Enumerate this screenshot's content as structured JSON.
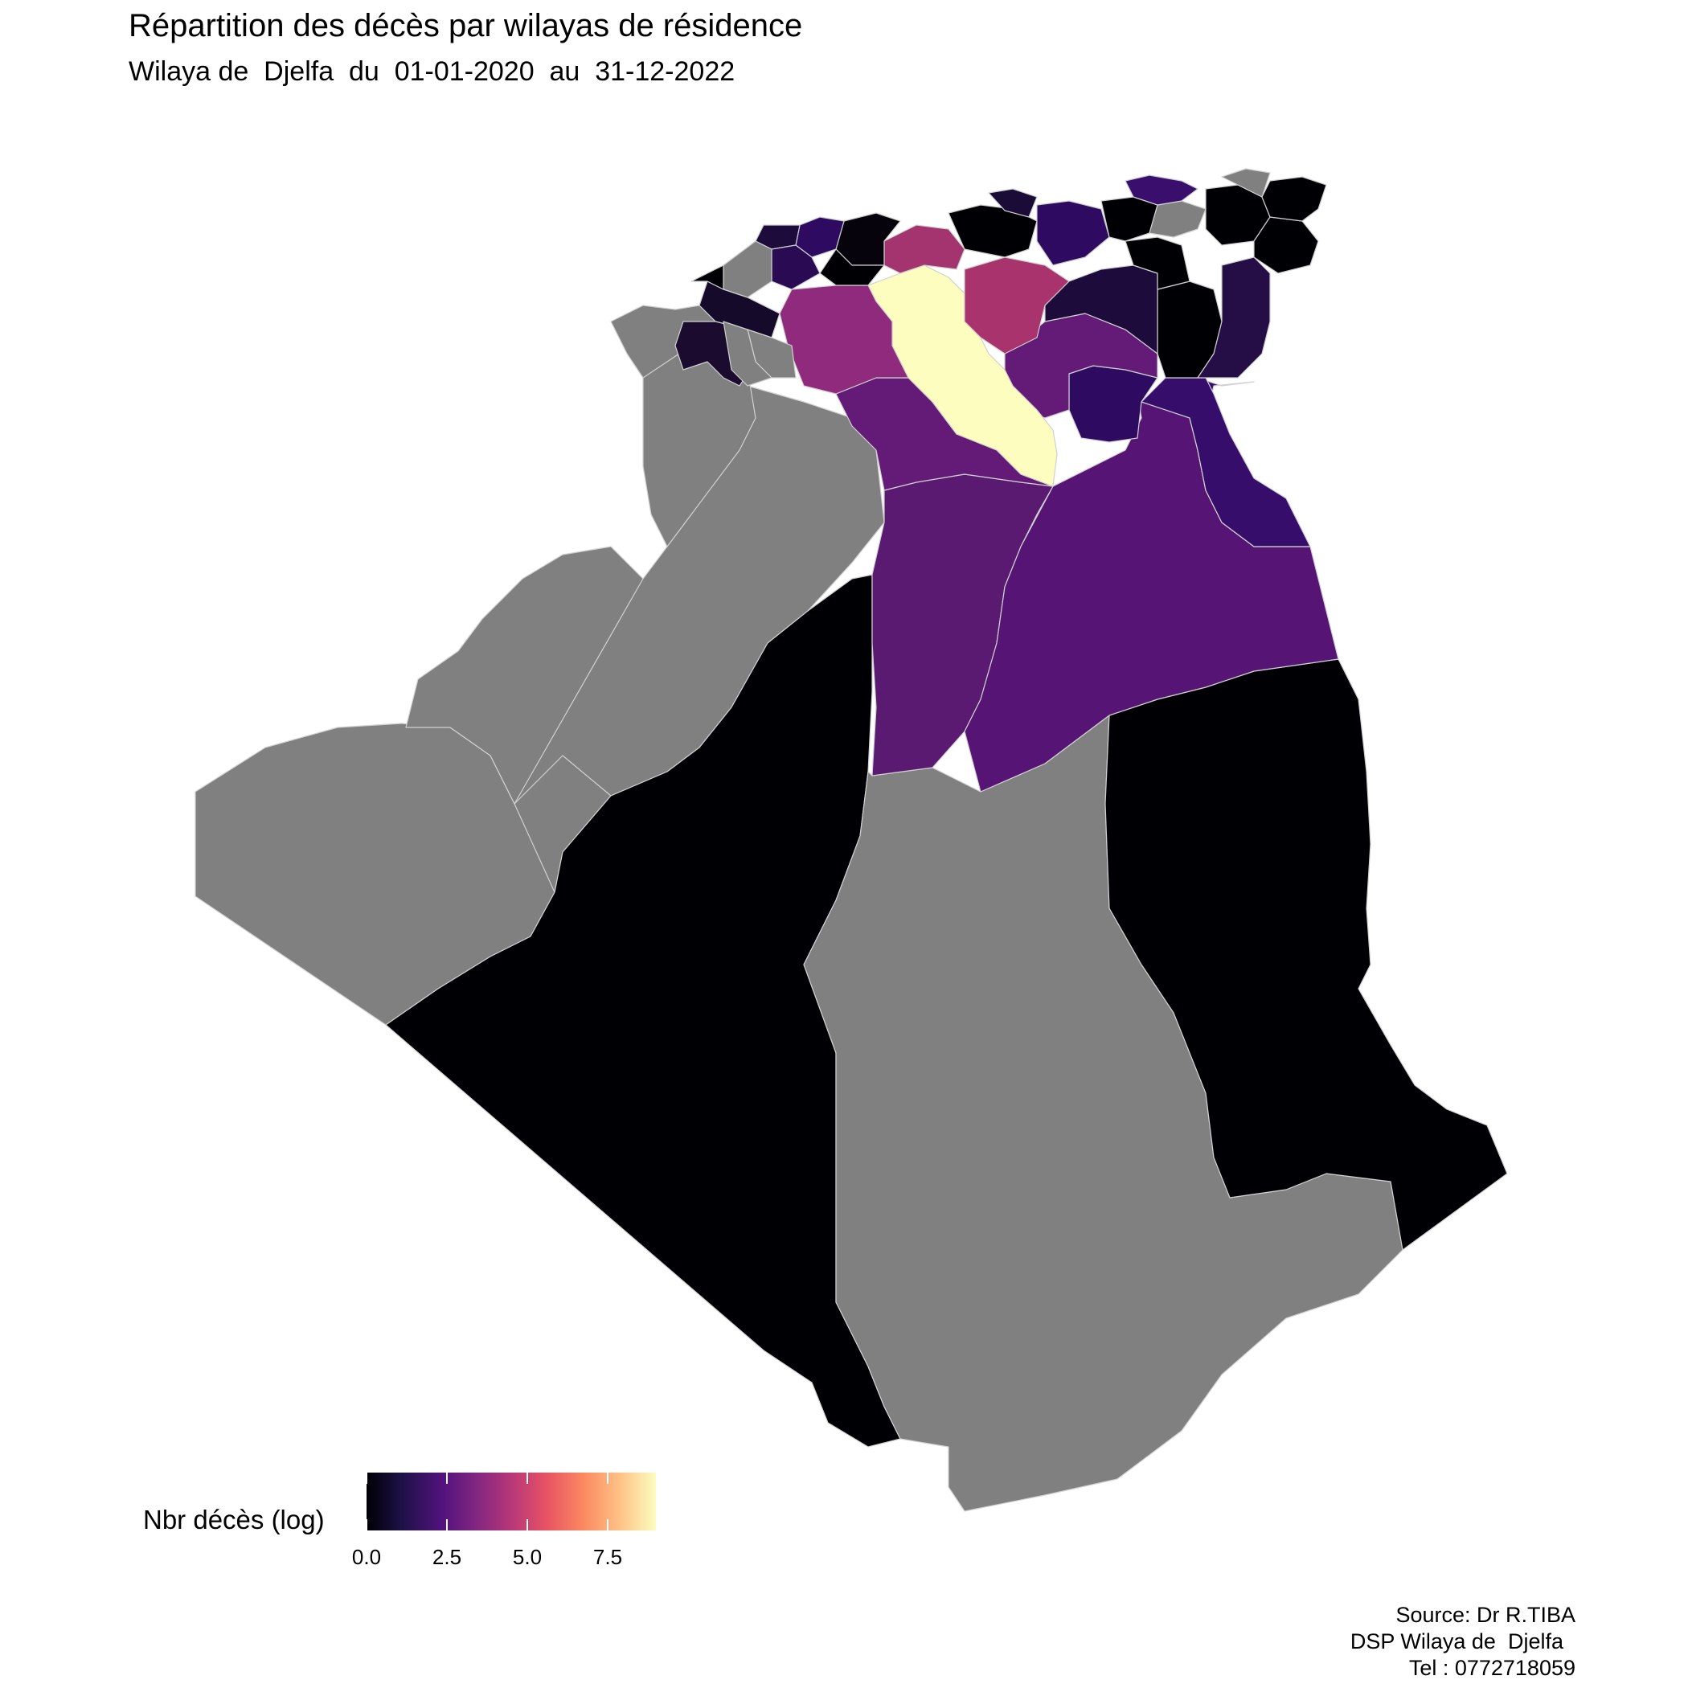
{
  "header": {
    "title": "Répartition des décès par wilayas de résidence",
    "subtitle": "Wilaya de  Djelfa  du  01-01-2020  au  31-12-2022"
  },
  "legend": {
    "title": "Nbr décès (log)",
    "ticks": [
      {
        "value": 0.0,
        "label": "0.0"
      },
      {
        "value": 2.5,
        "label": "2.5"
      },
      {
        "value": 5.0,
        "label": "5.0"
      },
      {
        "value": 7.5,
        "label": "7.5"
      }
    ],
    "range": [
      0,
      9
    ],
    "palette": [
      "#000004",
      "#1d1147",
      "#51127c",
      "#822681",
      "#b73779",
      "#e75263",
      "#fc8961",
      "#fec488",
      "#fcfdbf"
    ]
  },
  "colors": {
    "missing": "#808080",
    "border": "#cfcfcf"
  },
  "source": {
    "line1": "Source: Dr R.TIBA",
    "line2": "DSP Wilaya de  Djelfa  ",
    "line3": "Tel : 0772718059"
  }
}
